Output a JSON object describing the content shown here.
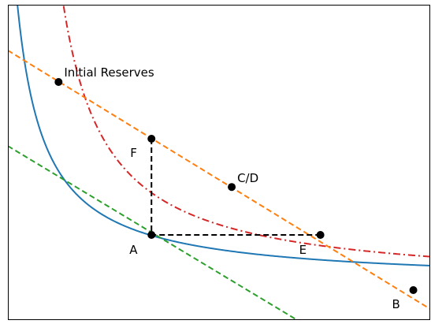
{
  "chart_data": {
    "type": "line",
    "title": "",
    "xlabel": "",
    "ylabel": "",
    "xlim": [
      0,
      10
    ],
    "ylim": [
      0,
      10
    ],
    "axes_ticks": "none",
    "grid": false,
    "series": [
      {
        "style": "solid",
        "color": "#1f77b4",
        "k": 5.795,
        "x0": -0.43,
        "y0": 1.17
      },
      {
        "style": "dashdot",
        "color": "#d62728",
        "k": 9.35,
        "x0": 0.27,
        "y0": 1.05
      },
      {
        "style": "dashed",
        "color": "#ff7f0e",
        "points": [
          [
            0,
            8.55
          ],
          [
            10,
            0.35
          ]
        ]
      },
      {
        "style": "dashed",
        "color": "#2ca02c",
        "points": [
          [
            0,
            5.52
          ],
          [
            6.85,
            0
          ]
        ]
      },
      {
        "style": "dashed",
        "color": "#000000",
        "points": [
          [
            3.4,
            5.75
          ],
          [
            3.4,
            2.7
          ],
          [
            7.4,
            2.7
          ]
        ]
      }
    ],
    "points": [
      {
        "label": "Initial Reserves",
        "x": 1.2,
        "y": 7.55
      },
      {
        "label": "F",
        "x": 3.4,
        "y": 5.75
      },
      {
        "label": "C/D",
        "x": 5.3,
        "y": 4.22
      },
      {
        "label": "A",
        "x": 3.4,
        "y": 2.7
      },
      {
        "label": "E",
        "x": 7.4,
        "y": 2.7
      },
      {
        "label": "B",
        "x": 9.6,
        "y": 0.95
      }
    ]
  }
}
